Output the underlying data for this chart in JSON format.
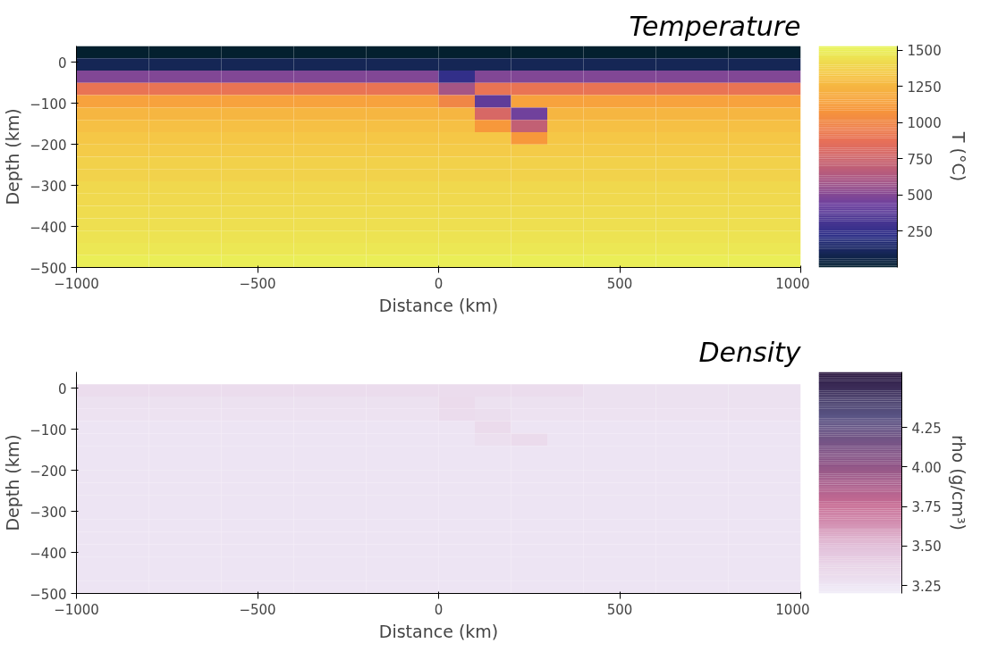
{
  "chart_data": [
    {
      "type": "heatmap",
      "title": "Temperature",
      "xlabel": "Distance (km)",
      "ylabel": "Depth (km)",
      "clabel": "T (°C)",
      "x": [
        -950,
        -850,
        -750,
        -650,
        -550,
        -450,
        -350,
        -250,
        -150,
        -50,
        50,
        150,
        250,
        350,
        450,
        550,
        650,
        750,
        850,
        950
      ],
      "y": [
        25,
        -5,
        -35,
        -65,
        -95,
        -125,
        -155,
        -185,
        -215,
        -245,
        -275,
        -305,
        -335,
        -365,
        -395,
        -425,
        -455,
        -485
      ],
      "xlim": [
        -1000,
        1000
      ],
      "xticks": [
        -1000,
        -500,
        0,
        500,
        1000
      ],
      "ylim": [
        -500,
        40
      ],
      "yticks": [
        -500,
        -400,
        -300,
        -200,
        -100,
        0
      ],
      "clim": [
        0,
        1530
      ],
      "cticks": [
        250,
        500,
        750,
        1000,
        1250,
        1500
      ],
      "cells": [
        [
          0,
          0,
          0,
          0,
          0,
          0,
          0,
          0,
          0,
          0,
          0,
          0,
          0,
          0,
          0,
          0,
          0,
          0,
          0,
          0
        ],
        [
          100,
          100,
          100,
          100,
          100,
          100,
          100,
          100,
          100,
          100,
          100,
          100,
          100,
          100,
          100,
          100,
          100,
          100,
          100,
          100
        ],
        [
          500,
          500,
          500,
          500,
          500,
          500,
          500,
          500,
          500,
          500,
          250,
          500,
          500,
          500,
          500,
          500,
          500,
          500,
          500,
          500
        ],
        [
          900,
          900,
          900,
          900,
          900,
          900,
          900,
          900,
          900,
          900,
          600,
          900,
          900,
          900,
          900,
          900,
          900,
          900,
          900,
          900
        ],
        [
          1150,
          1150,
          1150,
          1150,
          1150,
          1150,
          1150,
          1150,
          1150,
          1150,
          1000,
          400,
          1150,
          1150,
          1150,
          1150,
          1150,
          1150,
          1150,
          1150
        ],
        [
          1250,
          1250,
          1250,
          1250,
          1250,
          1250,
          1250,
          1250,
          1250,
          1250,
          1250,
          800,
          450,
          1250,
          1250,
          1250,
          1250,
          1250,
          1250,
          1250
        ],
        [
          1300,
          1300,
          1300,
          1300,
          1300,
          1300,
          1300,
          1300,
          1300,
          1300,
          1300,
          1100,
          700,
          1300,
          1300,
          1300,
          1300,
          1300,
          1300,
          1300
        ],
        [
          1330,
          1330,
          1330,
          1330,
          1330,
          1330,
          1330,
          1330,
          1330,
          1330,
          1330,
          1330,
          1100,
          1330,
          1330,
          1330,
          1330,
          1330,
          1330,
          1330
        ],
        [
          1350,
          1350,
          1350,
          1350,
          1350,
          1350,
          1350,
          1350,
          1350,
          1350,
          1350,
          1350,
          1350,
          1350,
          1350,
          1350,
          1350,
          1350,
          1350,
          1350
        ],
        [
          1370,
          1370,
          1370,
          1370,
          1370,
          1370,
          1370,
          1370,
          1370,
          1370,
          1370,
          1370,
          1370,
          1370,
          1370,
          1370,
          1370,
          1370,
          1370,
          1370
        ],
        [
          1380,
          1380,
          1380,
          1380,
          1380,
          1380,
          1380,
          1380,
          1380,
          1380,
          1380,
          1380,
          1380,
          1380,
          1380,
          1380,
          1380,
          1380,
          1380,
          1380
        ],
        [
          1400,
          1400,
          1400,
          1400,
          1400,
          1400,
          1400,
          1400,
          1400,
          1400,
          1400,
          1400,
          1400,
          1400,
          1400,
          1400,
          1400,
          1400,
          1400,
          1400
        ],
        [
          1410,
          1410,
          1410,
          1410,
          1410,
          1410,
          1410,
          1410,
          1410,
          1410,
          1410,
          1410,
          1410,
          1410,
          1410,
          1410,
          1410,
          1410,
          1410,
          1410
        ],
        [
          1420,
          1420,
          1420,
          1420,
          1420,
          1420,
          1420,
          1420,
          1420,
          1420,
          1420,
          1420,
          1420,
          1420,
          1420,
          1420,
          1420,
          1420,
          1420,
          1420
        ],
        [
          1430,
          1430,
          1430,
          1430,
          1430,
          1430,
          1430,
          1430,
          1430,
          1430,
          1430,
          1430,
          1430,
          1430,
          1430,
          1430,
          1430,
          1430,
          1430,
          1430
        ],
        [
          1450,
          1450,
          1450,
          1450,
          1450,
          1450,
          1450,
          1450,
          1450,
          1450,
          1450,
          1450,
          1450,
          1450,
          1450,
          1450,
          1450,
          1450,
          1450,
          1450
        ],
        [
          1470,
          1470,
          1470,
          1470,
          1470,
          1470,
          1470,
          1470,
          1470,
          1470,
          1470,
          1470,
          1470,
          1470,
          1470,
          1470,
          1470,
          1470,
          1470,
          1470
        ],
        [
          1500,
          1500,
          1500,
          1500,
          1500,
          1500,
          1500,
          1500,
          1500,
          1500,
          1500,
          1500,
          1500,
          1500,
          1500,
          1500,
          1500,
          1500,
          1500,
          1500
        ]
      ]
    },
    {
      "type": "heatmap",
      "title": "Density",
      "xlabel": "Distance (km)",
      "ylabel": "Depth (km)",
      "clabel": "rho (g/cm³)",
      "x": [
        -950,
        -850,
        -750,
        -650,
        -550,
        -450,
        -350,
        -250,
        -150,
        -50,
        50,
        150,
        250,
        350,
        450,
        550,
        650,
        750,
        850,
        950
      ],
      "y": [
        -5,
        -35,
        -65,
        -95,
        -125,
        -155,
        -185,
        -215,
        -245,
        -275,
        -305,
        -335,
        -365,
        -395,
        -425,
        -455,
        -485
      ],
      "xlim": [
        -1000,
        1000
      ],
      "xticks": [
        -1000,
        -500,
        0,
        500,
        1000
      ],
      "ylim": [
        -500,
        40
      ],
      "yticks": [
        -500,
        -400,
        -300,
        -200,
        -100,
        0
      ],
      "clim": [
        3.2,
        4.6
      ],
      "cticks": [
        {
          "value": 3.25,
          "label": "3.25"
        },
        {
          "value": 3.5,
          "label": "3.50"
        },
        {
          "value": 3.75,
          "label": "3.75"
        },
        {
          "value": 4.0,
          "label": "4.00"
        },
        {
          "value": 4.25,
          "label": "4.25"
        }
      ],
      "cells": [
        [
          3.31,
          3.31,
          3.31,
          3.31,
          3.31,
          3.31,
          3.31,
          3.31,
          3.31,
          3.31,
          3.31,
          3.31,
          3.31,
          3.31,
          3.28,
          3.28,
          3.28,
          3.28,
          3.28,
          3.28
        ],
        [
          3.28,
          3.28,
          3.28,
          3.28,
          3.28,
          3.28,
          3.28,
          3.28,
          3.28,
          3.28,
          3.32,
          3.28,
          3.28,
          3.28,
          3.28,
          3.28,
          3.28,
          3.28,
          3.28,
          3.28
        ],
        [
          3.27,
          3.27,
          3.27,
          3.27,
          3.27,
          3.27,
          3.27,
          3.27,
          3.27,
          3.27,
          3.31,
          3.3,
          3.27,
          3.27,
          3.27,
          3.27,
          3.27,
          3.27,
          3.27,
          3.27
        ],
        [
          3.26,
          3.26,
          3.26,
          3.26,
          3.26,
          3.26,
          3.26,
          3.26,
          3.26,
          3.26,
          3.26,
          3.32,
          3.26,
          3.26,
          3.26,
          3.26,
          3.26,
          3.26,
          3.26,
          3.26
        ],
        [
          3.26,
          3.26,
          3.26,
          3.26,
          3.26,
          3.26,
          3.26,
          3.26,
          3.26,
          3.26,
          3.26,
          3.29,
          3.32,
          3.26,
          3.26,
          3.26,
          3.26,
          3.26,
          3.26,
          3.26
        ],
        [
          3.26,
          3.26,
          3.26,
          3.26,
          3.26,
          3.26,
          3.26,
          3.26,
          3.26,
          3.26,
          3.26,
          3.26,
          3.26,
          3.26,
          3.26,
          3.26,
          3.26,
          3.26,
          3.26,
          3.26
        ],
        [
          3.26,
          3.26,
          3.26,
          3.26,
          3.26,
          3.26,
          3.26,
          3.26,
          3.26,
          3.26,
          3.26,
          3.26,
          3.26,
          3.26,
          3.26,
          3.26,
          3.26,
          3.26,
          3.26,
          3.26
        ],
        [
          3.26,
          3.26,
          3.26,
          3.26,
          3.26,
          3.26,
          3.26,
          3.26,
          3.26,
          3.26,
          3.26,
          3.26,
          3.26,
          3.26,
          3.26,
          3.26,
          3.26,
          3.26,
          3.26,
          3.26
        ],
        [
          3.26,
          3.26,
          3.26,
          3.26,
          3.26,
          3.26,
          3.26,
          3.26,
          3.26,
          3.26,
          3.26,
          3.26,
          3.26,
          3.26,
          3.26,
          3.26,
          3.26,
          3.26,
          3.26,
          3.26
        ],
        [
          3.26,
          3.26,
          3.26,
          3.26,
          3.26,
          3.26,
          3.26,
          3.26,
          3.26,
          3.26,
          3.26,
          3.26,
          3.26,
          3.26,
          3.26,
          3.26,
          3.26,
          3.26,
          3.26,
          3.26
        ],
        [
          3.26,
          3.26,
          3.26,
          3.26,
          3.26,
          3.26,
          3.26,
          3.26,
          3.26,
          3.26,
          3.26,
          3.26,
          3.26,
          3.26,
          3.26,
          3.26,
          3.26,
          3.26,
          3.26,
          3.26
        ],
        [
          3.26,
          3.26,
          3.26,
          3.26,
          3.26,
          3.26,
          3.26,
          3.26,
          3.26,
          3.26,
          3.26,
          3.26,
          3.26,
          3.26,
          3.26,
          3.26,
          3.26,
          3.26,
          3.26,
          3.26
        ],
        [
          3.26,
          3.26,
          3.26,
          3.26,
          3.26,
          3.26,
          3.26,
          3.26,
          3.26,
          3.26,
          3.26,
          3.26,
          3.26,
          3.26,
          3.26,
          3.26,
          3.26,
          3.26,
          3.26,
          3.26
        ],
        [
          3.26,
          3.26,
          3.26,
          3.26,
          3.26,
          3.26,
          3.26,
          3.26,
          3.26,
          3.26,
          3.26,
          3.26,
          3.26,
          3.26,
          3.26,
          3.26,
          3.26,
          3.26,
          3.26,
          3.26
        ],
        [
          3.26,
          3.26,
          3.26,
          3.26,
          3.26,
          3.26,
          3.26,
          3.26,
          3.26,
          3.26,
          3.26,
          3.26,
          3.26,
          3.26,
          3.26,
          3.26,
          3.26,
          3.26,
          3.26,
          3.26
        ],
        [
          3.26,
          3.26,
          3.26,
          3.26,
          3.26,
          3.26,
          3.26,
          3.26,
          3.26,
          3.26,
          3.26,
          3.26,
          3.26,
          3.26,
          3.26,
          3.26,
          3.26,
          3.26,
          3.26,
          3.26
        ],
        [
          3.26,
          3.26,
          3.26,
          3.26,
          3.26,
          3.26,
          3.26,
          3.26,
          3.26,
          3.26,
          3.26,
          3.26,
          3.26,
          3.26,
          3.26,
          3.26,
          3.26,
          3.26,
          3.26,
          3.26
        ]
      ]
    }
  ]
}
